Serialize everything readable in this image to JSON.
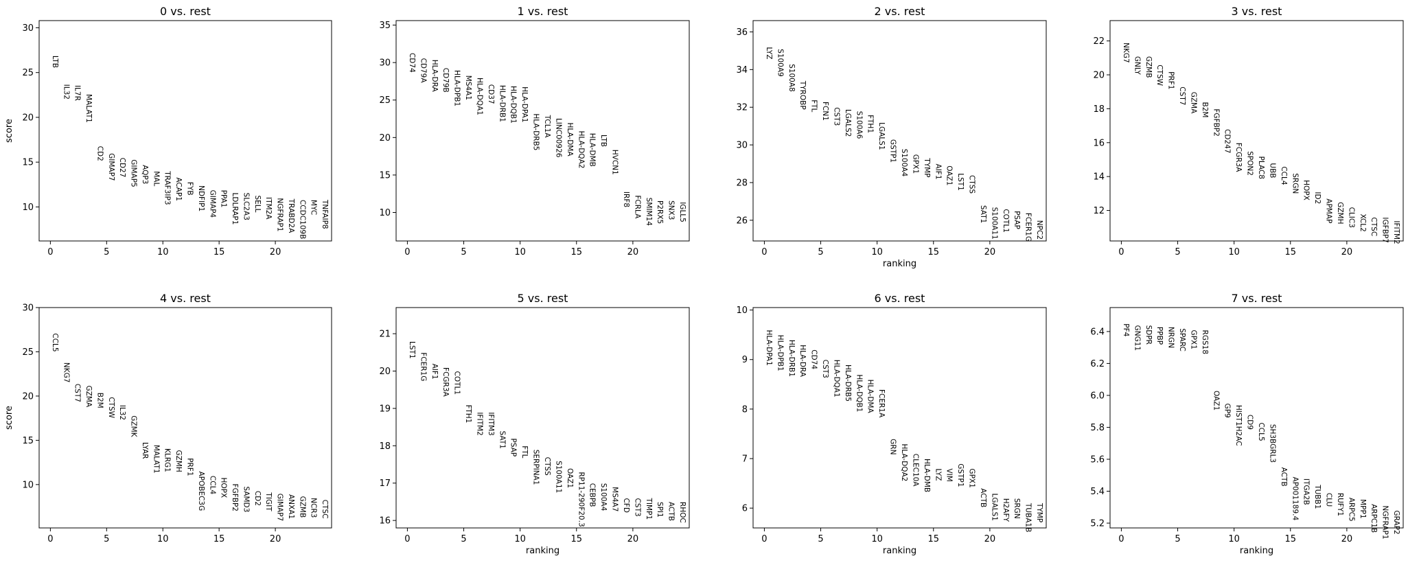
{
  "chart_data": [
    {
      "type": "scatter",
      "title": "0 vs. rest",
      "xlabel": "",
      "ylabel": "score",
      "xlim": [
        -1,
        25
      ],
      "ylim": [
        6.2,
        30.8
      ],
      "xticks": [
        0,
        5,
        10,
        15,
        20
      ],
      "yticks": [
        10,
        15,
        20,
        25,
        30
      ],
      "genes": [
        "LTB",
        "IL32",
        "IL7R",
        "MALAT1",
        "CD2",
        "GIMAP7",
        "CD27",
        "GIMAP5",
        "AQP3",
        "MAL",
        "TRAF3IP3",
        "ACAP1",
        "FYB",
        "NDFIP1",
        "GIMAP4",
        "PPA1",
        "LDLRAP1",
        "SLC2A3",
        "SELL",
        "ITM2A",
        "NGFRAP1",
        "TRABD2A",
        "CCDC109B",
        "MYC",
        "TNFAIP8"
      ],
      "scores": [
        26.9,
        23.7,
        23.6,
        22.6,
        16.8,
        16.0,
        15.5,
        15.3,
        14.7,
        14.0,
        14.0,
        13.3,
        12.8,
        12.4,
        11.9,
        11.9,
        11.6,
        11.6,
        11.3,
        11.1,
        11.0,
        10.9,
        10.8,
        10.8,
        10.8
      ]
    },
    {
      "type": "scatter",
      "title": "1 vs. rest",
      "xlabel": "",
      "ylabel": "",
      "xlim": [
        -1,
        25
      ],
      "ylim": [
        6.2,
        35.6
      ],
      "xticks": [
        0,
        5,
        10,
        15,
        20
      ],
      "yticks": [
        10,
        15,
        20,
        25,
        30,
        35
      ],
      "genes": [
        "CD74",
        "CD79A",
        "HLA-DRA",
        "CD79B",
        "HLA-DPB1",
        "MS4A1",
        "HLA-DQA1",
        "CD37",
        "HLA-DRB1",
        "HLA-DQB1",
        "HLA-DPA1",
        "HLA-DRB5",
        "TCL1A",
        "LINC00926",
        "HLA-DMA",
        "HLA-DQA2",
        "HLA-DMB",
        "LTB",
        "HVCN1",
        "IRF8",
        "FCRLA",
        "SMIM14",
        "P2RX5",
        "SNX3",
        "IGLL5"
      ],
      "scores": [
        31.3,
        30.6,
        30.4,
        29.3,
        29.0,
        28.3,
        28.0,
        27.1,
        27.0,
        26.9,
        26.8,
        23.2,
        23.0,
        22.6,
        22.0,
        20.9,
        20.6,
        20.4,
        18.4,
        12.8,
        12.3,
        12.0,
        11.6,
        11.6,
        11.4
      ]
    },
    {
      "type": "scatter",
      "title": "2 vs. rest",
      "xlabel": "ranking",
      "ylabel": "",
      "xlim": [
        -1,
        25
      ],
      "ylim": [
        24.9,
        36.6
      ],
      "xticks": [
        0,
        5,
        10,
        15,
        20
      ],
      "yticks": [
        26,
        28,
        30,
        32,
        34,
        36
      ],
      "genes": [
        "LYZ",
        "S100A9",
        "S100A8",
        "TYROBP",
        "FTL",
        "FCN1",
        "CST3",
        "LGALS2",
        "S100A6",
        "FTH1",
        "LGALS1",
        "GSTP1",
        "S100A4",
        "GPX1",
        "TYMP",
        "AIF1",
        "OAZ1",
        "LST1",
        "CTSS",
        "SAT1",
        "S100A11",
        "COTL1",
        "PSAP",
        "FCER1G",
        "NPC2"
      ],
      "scores": [
        35.2,
        35.1,
        34.3,
        33.4,
        32.4,
        32.3,
        32.0,
        31.9,
        31.8,
        31.6,
        31.2,
        30.3,
        29.8,
        29.5,
        29.3,
        29.0,
        28.9,
        28.5,
        28.4,
        26.8,
        26.7,
        26.6,
        26.5,
        26.4,
        26.0
      ]
    },
    {
      "type": "scatter",
      "title": "3 vs. rest",
      "xlabel": "",
      "ylabel": "",
      "xlim": [
        -1,
        25
      ],
      "ylim": [
        10.2,
        23.2
      ],
      "xticks": [
        0,
        5,
        10,
        15,
        20
      ],
      "yticks": [
        12,
        14,
        16,
        18,
        20,
        22
      ],
      "genes": [
        "NKG7",
        "GNLY",
        "GZMB",
        "CTSW",
        "PRF1",
        "CST7",
        "GZMA",
        "B2M",
        "FGFBP2",
        "CD247",
        "FCGR3A",
        "SPON2",
        "PLAC8",
        "UBB",
        "CCL4",
        "SRGN",
        "HOPX",
        "ID2",
        "APMAP",
        "GZMH",
        "CLIC3",
        "XCL2",
        "CTSC",
        "IGFBP7",
        "IFITM2"
      ],
      "scores": [
        21.9,
        21.1,
        21.1,
        20.6,
        20.2,
        19.3,
        19.0,
        18.4,
        18.0,
        16.8,
        16.0,
        15.5,
        15.2,
        14.8,
        14.6,
        14.2,
        13.8,
        13.1,
        12.7,
        12.5,
        12.2,
        11.8,
        11.6,
        11.6,
        11.4
      ]
    },
    {
      "type": "scatter",
      "title": "4 vs. rest",
      "xlabel": "",
      "ylabel": "score",
      "xlim": [
        -1,
        25
      ],
      "ylim": [
        5.1,
        30.0
      ],
      "xticks": [
        0,
        5,
        10,
        15,
        20
      ],
      "yticks": [
        10,
        15,
        20,
        25,
        30
      ],
      "genes": [
        "CCL5",
        "NKG7",
        "CST7",
        "GZMA",
        "B2M",
        "CTSW",
        "IL32",
        "GZMK",
        "LYAR",
        "MALAT1",
        "KLRG1",
        "GZMH",
        "PRF1",
        "APOBEC3G",
        "CCL4",
        "HOPX",
        "FGFBP2",
        "SAMD3",
        "CD2",
        "TIGIT",
        "GIMAP7",
        "ANXA1",
        "GZMB",
        "NCR3",
        "CTSC"
      ],
      "scores": [
        27.1,
        23.8,
        21.4,
        21.2,
        20.4,
        19.9,
        19.0,
        17.8,
        14.8,
        14.5,
        14.1,
        13.9,
        13.0,
        11.5,
        11.0,
        10.8,
        10.1,
        9.8,
        9.3,
        9.1,
        9.0,
        8.9,
        8.7,
        8.5,
        8.3
      ]
    },
    {
      "type": "scatter",
      "title": "5 vs. rest",
      "xlabel": "ranking",
      "ylabel": "",
      "xlim": [
        -1,
        25
      ],
      "ylim": [
        15.8,
        21.7
      ],
      "xticks": [
        0,
        5,
        10,
        15,
        20
      ],
      "yticks": [
        16,
        17,
        18,
        19,
        20,
        21
      ],
      "genes": [
        "LST1",
        "FCER1G",
        "AIF1",
        "FCGR3A",
        "COTL1",
        "FTH1",
        "IFITM2",
        "IFITM3",
        "SAT1",
        "PSAP",
        "FTL",
        "SERPINA1",
        "CTSS",
        "S100A11",
        "OAZ1",
        "RP11-290F20.3",
        "CEBPB",
        "S100A4",
        "MS4A7",
        "CFD",
        "CST3",
        "TIMP1",
        "SPI1",
        "ACTB",
        "RHOC"
      ],
      "scores": [
        20.8,
        20.5,
        20.2,
        20.1,
        20.0,
        19.1,
        18.9,
        18.9,
        18.4,
        18.2,
        18.0,
        17.9,
        17.7,
        17.6,
        17.4,
        17.3,
        17.0,
        17.0,
        16.9,
        16.6,
        16.6,
        16.6,
        16.5,
        16.5,
        16.5
      ]
    },
    {
      "type": "scatter",
      "title": "6 vs. rest",
      "xlabel": "ranking",
      "ylabel": "",
      "xlim": [
        -1,
        25
      ],
      "ylim": [
        5.6,
        10.05
      ],
      "xticks": [
        0,
        5,
        10,
        15,
        20
      ],
      "yticks": [
        6,
        7,
        8,
        9,
        10
      ],
      "genes": [
        "HLA-DPA1",
        "HLA-DPB1",
        "HLA-DRB1",
        "HLA-DRA",
        "CD74",
        "CST3",
        "HLA-DQA1",
        "HLA-DRB5",
        "HLA-DQB1",
        "HLA-DMA",
        "FCER1A",
        "GRN",
        "HLA-DQA2",
        "CLEC10A",
        "HLA-DMB",
        "LYZ",
        "VIM",
        "GSTP1",
        "GPX1",
        "ACTB",
        "LGALS1",
        "H2AFY",
        "SRGN",
        "TUBA1B",
        "TYMP"
      ],
      "scores": [
        9.6,
        9.5,
        9.4,
        9.3,
        9.2,
        9.0,
        9.0,
        8.9,
        8.7,
        8.6,
        8.4,
        7.4,
        7.3,
        7.1,
        7.0,
        6.8,
        6.8,
        6.9,
        6.8,
        6.4,
        6.3,
        6.2,
        6.2,
        6.1,
        6.1
      ]
    },
    {
      "type": "scatter",
      "title": "7 vs. rest",
      "xlabel": "ranking",
      "ylabel": "",
      "xlim": [
        -1,
        25
      ],
      "ylim": [
        5.17,
        6.55
      ],
      "xticks": [
        0,
        5,
        10,
        15,
        20
      ],
      "yticks": [
        5.2,
        5.4,
        5.6,
        5.8,
        6.0,
        6.2,
        6.4
      ],
      "genes": [
        "PF4",
        "GNG11",
        "SDPR",
        "PPBP",
        "NRGN",
        "SPARC",
        "GPX1",
        "RGS18",
        "OAZ1",
        "GP9",
        "HIST1H2AC",
        "CD9",
        "CCL5",
        "SH3BGRL3",
        "ACTB",
        "AP001189.4",
        "ITGA2B",
        "TUBB1",
        "CLU",
        "RUFY1",
        "ARPC5",
        "MPP1",
        "ARPC1B",
        "NGFRAP1",
        "GRAP2"
      ],
      "scores": [
        6.45,
        6.44,
        6.44,
        6.43,
        6.43,
        6.42,
        6.41,
        6.41,
        6.03,
        5.95,
        5.94,
        5.88,
        5.83,
        5.82,
        5.55,
        5.49,
        5.48,
        5.44,
        5.39,
        5.39,
        5.36,
        5.35,
        5.32,
        5.31,
        5.28
      ]
    }
  ]
}
